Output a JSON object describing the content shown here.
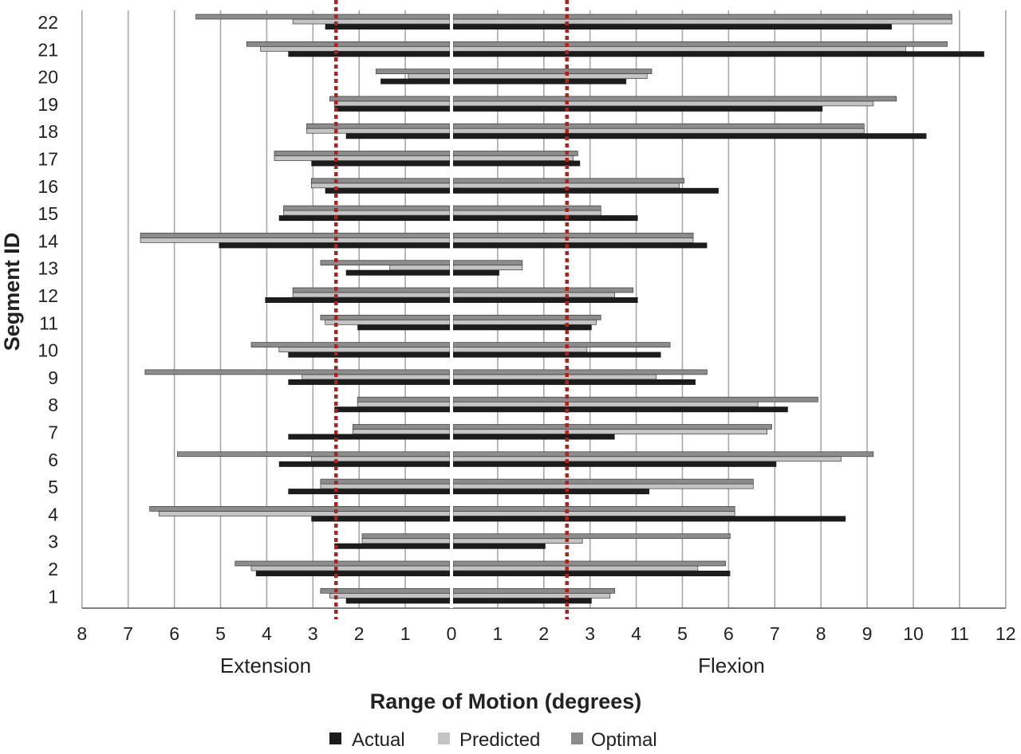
{
  "chart_data": {
    "type": "bar",
    "orientation": "horizontal",
    "xlabel": "Range of Motion (degrees)",
    "ylabel": "Segment ID",
    "direction_labels": {
      "negative": "Extension",
      "positive": "Flexion"
    },
    "x_ticks_extension": [
      8,
      7,
      6,
      5,
      4,
      3,
      2,
      1
    ],
    "x_ticks_flexion": [
      0,
      1,
      2,
      3,
      4,
      5,
      6,
      7,
      8,
      9,
      10,
      11,
      12
    ],
    "xlim": [
      -8,
      12
    ],
    "grid": "vertical",
    "legend_position": "bottom",
    "threshold_lines": [
      -2.5,
      2.5
    ],
    "categories": [
      "1",
      "2",
      "3",
      "4",
      "5",
      "6",
      "7",
      "8",
      "9",
      "10",
      "11",
      "12",
      "13",
      "14",
      "15",
      "16",
      "17",
      "18",
      "19",
      "20",
      "21",
      "22"
    ],
    "series": [
      {
        "name": "Actual",
        "color": "#1c1c1c",
        "extension": [
          2.25,
          4.2,
          2.5,
          3.0,
          3.5,
          3.7,
          3.5,
          2.5,
          3.5,
          3.5,
          2.0,
          4.0,
          2.25,
          5.0,
          3.7,
          2.7,
          3.0,
          2.25,
          2.5,
          1.5,
          3.5,
          2.7
        ],
        "flexion": [
          3.0,
          6.0,
          2.0,
          8.5,
          4.25,
          7.0,
          3.5,
          7.25,
          5.25,
          4.5,
          3.0,
          4.0,
          1.0,
          5.5,
          4.0,
          5.75,
          2.75,
          10.25,
          8.0,
          3.75,
          11.5,
          9.5
        ]
      },
      {
        "name": "Predicted",
        "color": "#c4c4c4",
        "extension": [
          2.6,
          4.3,
          1.9,
          6.3,
          2.8,
          3.0,
          2.1,
          2.0,
          3.2,
          3.7,
          2.7,
          3.4,
          1.3,
          6.7,
          3.6,
          3.0,
          3.8,
          3.1,
          2.5,
          0.9,
          4.1,
          3.4
        ],
        "flexion": [
          3.4,
          5.3,
          2.8,
          6.1,
          6.5,
          8.4,
          6.8,
          6.6,
          4.4,
          2.9,
          3.1,
          3.5,
          1.5,
          5.2,
          3.2,
          4.9,
          2.6,
          8.9,
          9.1,
          4.2,
          9.8,
          10.8
        ]
      },
      {
        "name": "Optimal",
        "color": "#8c8c8c",
        "extension": [
          2.8,
          4.65,
          1.9,
          6.5,
          2.8,
          5.9,
          2.1,
          2.0,
          6.6,
          4.3,
          2.8,
          3.4,
          2.8,
          6.7,
          3.6,
          3.0,
          3.8,
          3.1,
          2.6,
          1.6,
          4.4,
          5.5
        ],
        "flexion": [
          3.5,
          5.9,
          6.0,
          6.1,
          6.5,
          9.1,
          6.9,
          7.9,
          5.5,
          4.7,
          3.2,
          3.9,
          1.5,
          5.2,
          3.2,
          5.0,
          2.7,
          8.9,
          9.6,
          4.3,
          10.7,
          10.8
        ]
      }
    ]
  }
}
